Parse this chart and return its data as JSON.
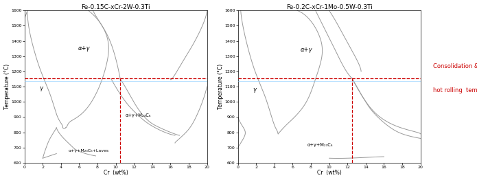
{
  "title1": "Fe-0.15C-xCr-2W-0.3Ti",
  "title2": "Fe-0.2C-xCr-1Mo-0.5W-0.3Ti",
  "xlabel": "Cr  (wt%)",
  "ylabel": "Temperature (°C)",
  "xlim": [
    0,
    20
  ],
  "ylim": [
    600,
    1600
  ],
  "yticks": [
    600,
    700,
    800,
    900,
    1000,
    1100,
    1200,
    1300,
    1400,
    1500,
    1600
  ],
  "xticks": [
    0,
    2,
    4,
    6,
    8,
    10,
    12,
    14,
    16,
    18,
    20
  ],
  "hline_y": 1155,
  "hline_color": "#CC0000",
  "vline1_x": 10.5,
  "vline2_x": 12.5,
  "vline_color": "#CC0000",
  "annotation_color": "#CC0000",
  "annotation_text1": "Consolidation &",
  "annotation_text2": "hot rolling  temperature",
  "line_color": "#999999",
  "background_color": "#ffffff",
  "label_alpha_gamma1": "α+γ",
  "label_gamma1": "γ",
  "label_alpha_gamma_M23C6_1": "α+γ+M₂₃C₆",
  "label_alpha_gamma_M23C6_Laves": "α+γ+M₂₃C₆+Laves",
  "label_alpha_gamma2": "α+γ",
  "label_gamma2": "γ",
  "label_alpha_gamma_M23C6_2": "α+γ+M₂₃C₆",
  "hline_light_color": "#88ccff"
}
